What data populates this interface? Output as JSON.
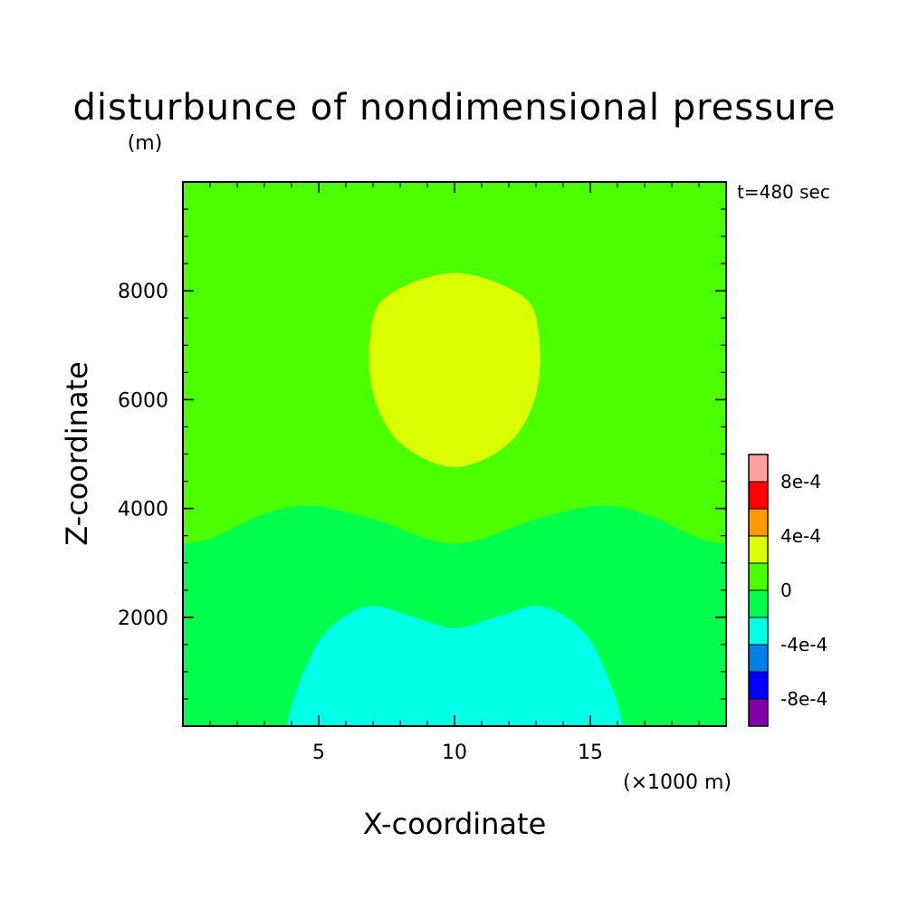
{
  "chart_data": {
    "type": "heatmap",
    "title": "disturbunce of nondimensional pressure",
    "z_unit": "(m)",
    "x_unit": "(×1000 m)",
    "xlabel": "X-coordinate",
    "ylabel": "Z-coordinate",
    "time_label": "t=480 sec",
    "xlim": [
      0,
      20
    ],
    "ylim": [
      0,
      10000
    ],
    "x_ticks": [
      5,
      10,
      15
    ],
    "y_ticks": [
      2000,
      4000,
      6000,
      8000
    ],
    "x_tick_labels": [
      "5",
      "10",
      "15"
    ],
    "y_tick_labels": [
      "2000",
      "4000",
      "6000",
      "8000"
    ],
    "background_level_color": "#4cff00",
    "regions": [
      {
        "value_range": [
          -0.0004,
          -0.0002
        ],
        "color": "#00ffe5",
        "boundary": [
          [
            3.8,
            0
          ],
          [
            4.2,
            700
          ],
          [
            5.2,
            1700
          ],
          [
            6.8,
            2200
          ],
          [
            8.5,
            2000
          ],
          [
            10,
            1800
          ],
          [
            11.5,
            2000
          ],
          [
            13.2,
            2200
          ],
          [
            14.8,
            1700
          ],
          [
            15.8,
            700
          ],
          [
            16.2,
            0
          ]
        ]
      },
      {
        "value_range": [
          -0.0002,
          0
        ],
        "color": "#00ff4d",
        "boundary": [
          [
            0,
            0
          ],
          [
            0,
            3350
          ],
          [
            1,
            3450
          ],
          [
            3,
            3900
          ],
          [
            4.7,
            4050
          ],
          [
            7,
            3800
          ],
          [
            10,
            3350
          ],
          [
            13,
            3800
          ],
          [
            15.3,
            4050
          ],
          [
            17,
            3900
          ],
          [
            19,
            3450
          ],
          [
            20,
            3350
          ],
          [
            20,
            0
          ]
        ]
      },
      {
        "value_range": [
          0.0002,
          0.0004
        ],
        "color": "#d9ff00",
        "boundary": [
          [
            10,
            8330
          ],
          [
            12.5,
            7900
          ],
          [
            13.1,
            7200
          ],
          [
            13,
            6100
          ],
          [
            12,
            5200
          ],
          [
            10,
            4760
          ],
          [
            8,
            5200
          ],
          [
            7,
            6100
          ],
          [
            6.9,
            7200
          ],
          [
            7.5,
            7900
          ]
        ]
      }
    ],
    "colorbar": {
      "colors": [
        "#8000aa",
        "#0000ff",
        "#0080e5",
        "#00ffe5",
        "#00ff4d",
        "#4cff00",
        "#d9ff00",
        "#ff9900",
        "#ff0000",
        "#ffa0a0"
      ],
      "tick_labels": [
        "-8e-4",
        "-4e-4",
        "0",
        "4e-4",
        "8e-4"
      ],
      "tick_levels": [
        -0.0008,
        -0.0004,
        0,
        0.0004,
        0.0008
      ]
    }
  }
}
